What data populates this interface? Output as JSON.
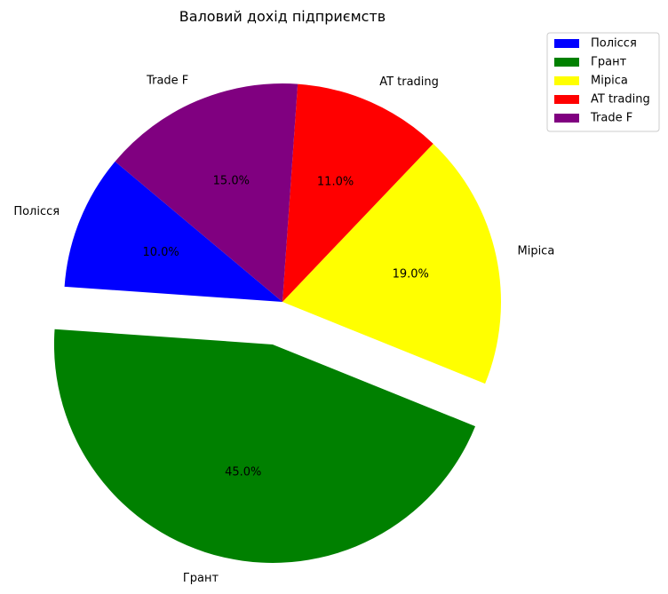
{
  "chart_data": {
    "type": "pie",
    "title": "Валовий дохід підприємств",
    "categories": [
      "Полісся",
      "Грант",
      "Міріса",
      "AT trading",
      "Trade F"
    ],
    "values": [
      10,
      45,
      19,
      11,
      15
    ],
    "percent_labels": [
      "10.0%",
      "45.0%",
      "19.0%",
      "11.0%",
      "15.0%"
    ],
    "colors": [
      "#0000ff",
      "#008000",
      "#ffff00",
      "#ff0000",
      "#800080"
    ],
    "exploded": [
      false,
      true,
      false,
      false,
      false
    ],
    "start_angle_deg": 140,
    "direction": "counterclockwise",
    "legend": {
      "placement": "top-right",
      "entries": [
        "Полісся",
        "Грант",
        "Міріса",
        "AT trading",
        "Trade F"
      ]
    }
  }
}
